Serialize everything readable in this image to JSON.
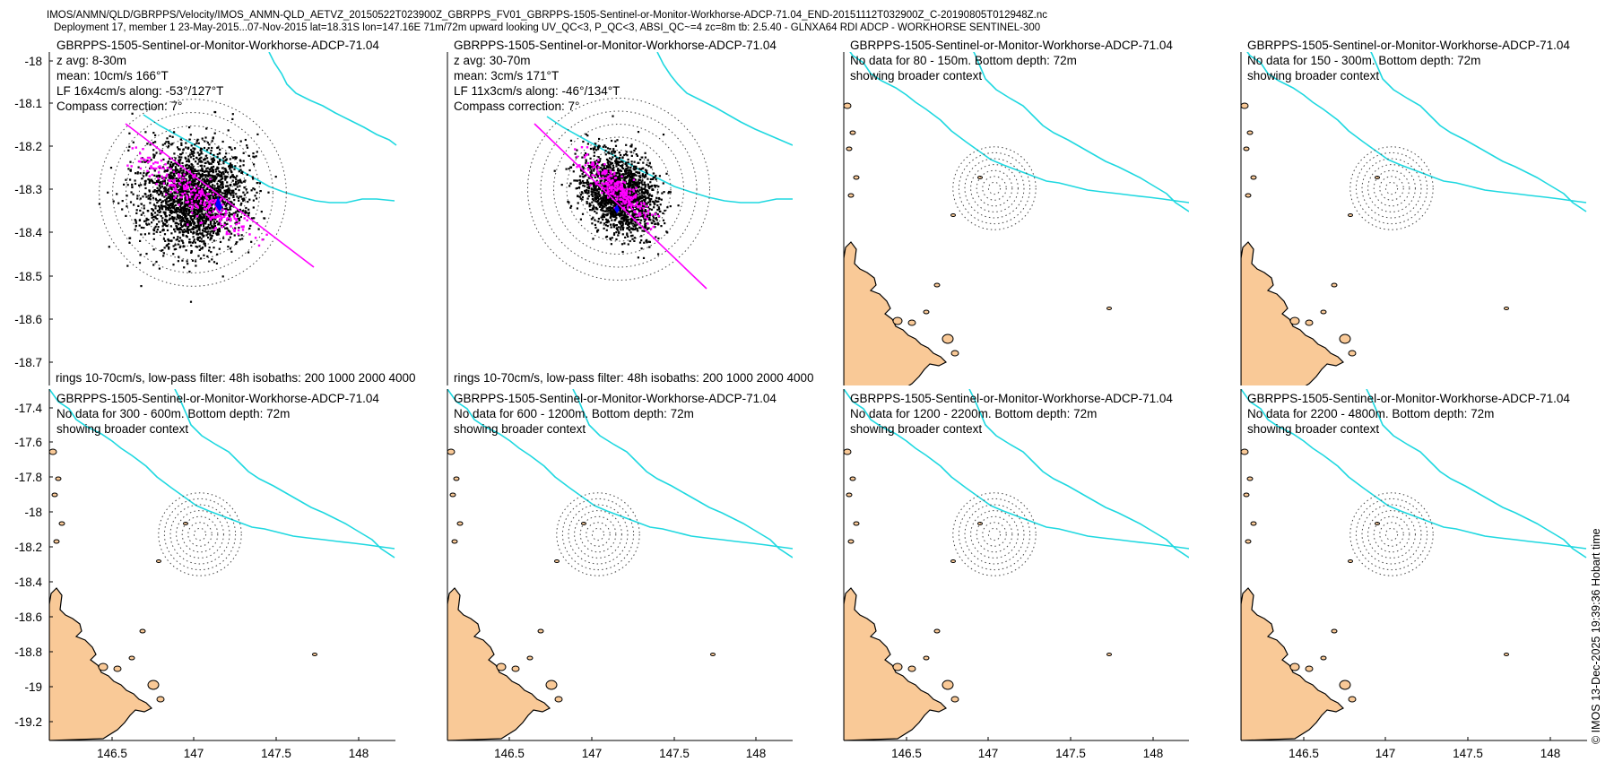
{
  "figure": {
    "title_line1": "IMOS/ANMN/QLD/GBRPPS/Velocity/IMOS_ANMN-QLD_AETVZ_20150522T023900Z_GBRPPS_FV01_GBRPPS-1505-Sentinel-or-Monitor-Workhorse-ADCP-71.04_END-20151112T032900Z_C-20190805T012948Z.nc",
    "title_line2": "Deployment 17, member 1 23-May-2015...07-Nov-2015 lat=18.31S lon=147.16E 71m/72m upward looking UV_QC<3, P_QC<3, ABSI_QC~=4 zc=8m tb: 2.5.40 - GLNXA64 RDI ADCP - WORKHORSE SENTINEL-300",
    "copyright": "© IMOS 13-Dec-2025 19:39:36 Hobart time",
    "colors": {
      "coast": "#000000",
      "land": "#f9c997",
      "isobath": "#1fd8e0",
      "lowpass": "#ff00ff",
      "mean": "#0000ff",
      "rings": "#444444"
    }
  },
  "chart_data": [
    {
      "type": "scatter",
      "panel": "p1",
      "map_extent": {
        "lon": [
          146.1,
          148.2
        ],
        "lat": [
          -18.77,
          -17.95
        ]
      },
      "title": "GBRPPS-1505-Sentinel-or-Monitor-Workhorse-ADCP-71.04",
      "lines": [
        "z avg: 8-30m",
        "mean: 10cm/s 166°T",
        "LF 16x4cm/s along: -53°/127°T",
        "Compass correction: 7°"
      ],
      "footer": "rings 10-70cm/s, low-pass filter: 48h isobaths: 200 1000 2000 4000",
      "yticks": [
        "-18",
        "-18.1",
        "-18.2",
        "-18.3",
        "-18.4",
        "-18.5",
        "-18.6",
        "-18.7"
      ],
      "scatter": {
        "center_lon": 147.16,
        "center_lat": -18.31,
        "spread_lon": 0.33,
        "spread_lat": 0.13,
        "rotation_deg": -28,
        "n_points": 2200
      },
      "rings_cm_s": [
        10,
        20,
        30,
        40,
        50,
        60,
        70
      ],
      "low_pass": {
        "along_deg_true": 127,
        "major_cm_s": 16,
        "minor_cm_s": 4
      },
      "mean_vector": {
        "speed_cm_s": 10,
        "direction_deg_true": 166
      }
    },
    {
      "type": "scatter",
      "panel": "p2",
      "map_extent": {
        "lon": [
          146.1,
          148.2
        ],
        "lat": [
          -18.77,
          -17.95
        ]
      },
      "title": "GBRPPS-1505-Sentinel-or-Monitor-Workhorse-ADCP-71.04",
      "lines": [
        "z avg: 30-70m",
        "mean: 3cm/s 171°T",
        "LF 11x3cm/s along: -46°/134°T",
        "Compass correction: 7°"
      ],
      "footer": "rings 10-70cm/s, low-pass filter: 48h isobaths: 200 1000 2000 4000",
      "scatter": {
        "center_lon": 147.16,
        "center_lat": -18.31,
        "spread_lon": 0.24,
        "spread_lat": 0.11,
        "rotation_deg": -38,
        "n_points": 1800
      },
      "rings_cm_s": [
        10,
        20,
        30,
        40,
        50,
        60,
        70
      ],
      "low_pass": {
        "along_deg_true": 134,
        "major_cm_s": 11,
        "minor_cm_s": 3
      },
      "mean_vector": {
        "speed_cm_s": 3,
        "direction_deg_true": 171
      }
    },
    {
      "type": "map",
      "panel": "p3",
      "map_extent": {
        "lon": [
          146.1,
          148.2
        ],
        "lat": [
          -19.3,
          -17.3
        ]
      },
      "title": "GBRPPS-1505-Sentinel-or-Monitor-Workhorse-ADCP-71.04",
      "lines": [
        "No data for 80 - 150m. Bottom depth: 72m",
        "showing broader context"
      ]
    },
    {
      "type": "map",
      "panel": "p4",
      "map_extent": {
        "lon": [
          146.1,
          148.2
        ],
        "lat": [
          -19.3,
          -17.3
        ]
      },
      "title": "GBRPPS-1505-Sentinel-or-Monitor-Workhorse-ADCP-71.04",
      "lines": [
        "No data for 150 - 300m. Bottom depth: 72m",
        "showing broader context"
      ]
    },
    {
      "type": "map",
      "panel": "p5",
      "map_extent": {
        "lon": [
          146.1,
          148.2
        ],
        "lat": [
          -19.3,
          -17.3
        ]
      },
      "title": "GBRPPS-1505-Sentinel-or-Monitor-Workhorse-ADCP-71.04",
      "lines": [
        "No data for 300 - 600m. Bottom depth: 72m",
        "showing broader context"
      ],
      "yticks": [
        "-17.4",
        "-17.6",
        "-17.8",
        "-18",
        "-18.2",
        "-18.4",
        "-18.6",
        "-18.8",
        "-19",
        "-19.2"
      ],
      "xticks": [
        "146.5",
        "147",
        "147.5",
        "148"
      ]
    },
    {
      "type": "map",
      "panel": "p6",
      "map_extent": {
        "lon": [
          146.1,
          148.2
        ],
        "lat": [
          -19.3,
          -17.3
        ]
      },
      "title": "GBRPPS-1505-Sentinel-or-Monitor-Workhorse-ADCP-71.04",
      "lines": [
        "No data for 600 - 1200m. Bottom depth: 72m",
        "showing broader context"
      ],
      "xticks": [
        "146.5",
        "147",
        "147.5",
        "148"
      ]
    },
    {
      "type": "map",
      "panel": "p7",
      "map_extent": {
        "lon": [
          146.1,
          148.2
        ],
        "lat": [
          -19.3,
          -17.3
        ]
      },
      "title": "GBRPPS-1505-Sentinel-or-Monitor-Workhorse-ADCP-71.04",
      "lines": [
        "No data for 1200 - 2200m. Bottom depth: 72m",
        "showing broader context"
      ],
      "xticks": [
        "146.5",
        "147",
        "147.5",
        "148"
      ]
    },
    {
      "type": "map",
      "panel": "p8",
      "map_extent": {
        "lon": [
          146.1,
          148.2
        ],
        "lat": [
          -19.3,
          -17.3
        ]
      },
      "title": "GBRPPS-1505-Sentinel-or-Monitor-Workhorse-ADCP-71.04",
      "lines": [
        "No data for 2200 - 4800m. Bottom depth: 72m",
        "showing broader context"
      ],
      "xticks": [
        "146.5",
        "147",
        "147.5",
        "148"
      ]
    }
  ]
}
